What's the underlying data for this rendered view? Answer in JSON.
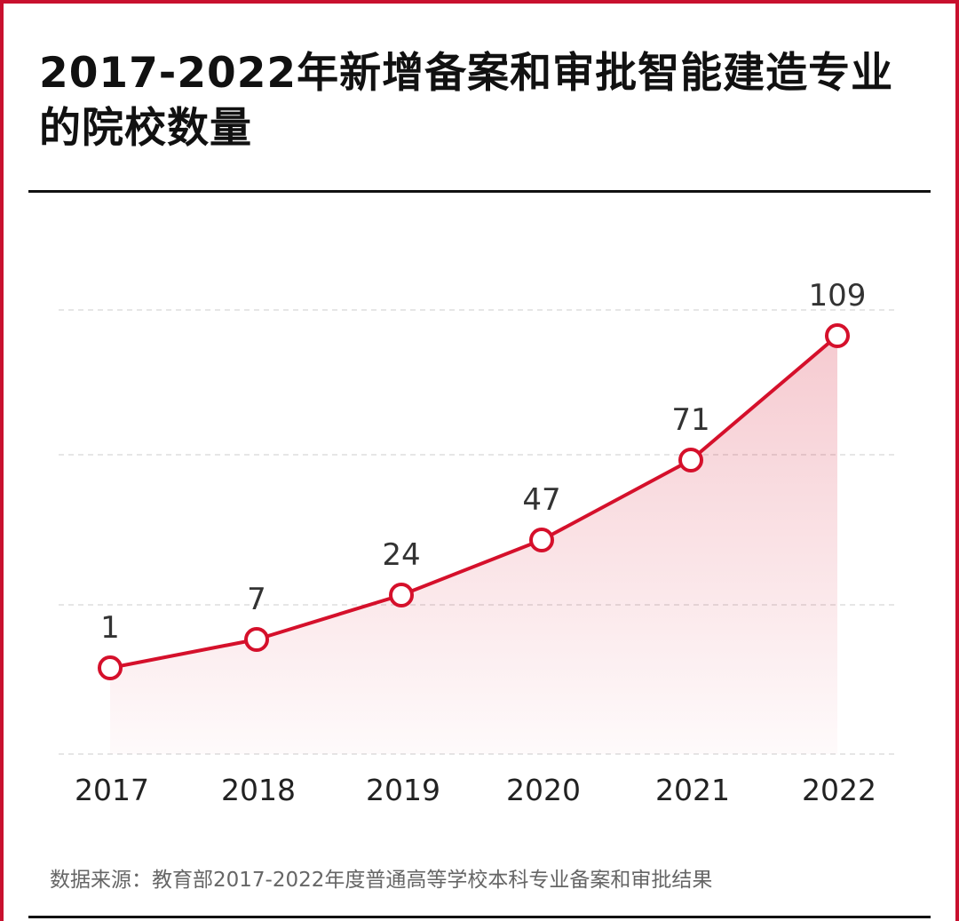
{
  "title": "2017-2022年新增备案和审批智能建造专业的院校数量",
  "source": "数据来源：教育部2017-2022年度普通高等学校本科专业备案和审批结果",
  "colors": {
    "line": "#d5102b",
    "frame": "#c8102e",
    "grid": "#dddddd",
    "text": "#333333"
  },
  "chart_data": {
    "type": "line",
    "title": "2017-2022年新增备案和审批智能建造专业的院校数量",
    "xlabel": "",
    "ylabel": "",
    "categories": [
      "2017",
      "2018",
      "2019",
      "2020",
      "2021",
      "2022"
    ],
    "values": [
      1,
      7,
      24,
      47,
      71,
      109
    ],
    "data_labels": [
      "1",
      "7",
      "24",
      "47",
      "71",
      "109"
    ],
    "grid": true,
    "legend": "none"
  }
}
